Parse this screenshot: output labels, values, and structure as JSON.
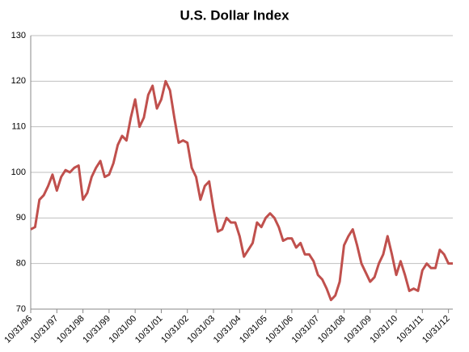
{
  "chart_data": {
    "type": "line",
    "title": "U.S. Dollar Index",
    "categories": [
      "10/31/96",
      null,
      null,
      null,
      null,
      null,
      "10/31/97",
      null,
      null,
      null,
      null,
      null,
      "10/31/98",
      null,
      null,
      null,
      null,
      null,
      "10/31/99",
      null,
      null,
      null,
      null,
      null,
      "10/31/00",
      null,
      null,
      null,
      null,
      null,
      "10/31/01",
      null,
      null,
      null,
      null,
      null,
      "10/31/02",
      null,
      null,
      null,
      null,
      null,
      "10/31/03",
      null,
      null,
      null,
      null,
      null,
      "10/31/04",
      null,
      null,
      null,
      null,
      null,
      "10/31/05",
      null,
      null,
      null,
      null,
      null,
      "10/31/06",
      null,
      null,
      null,
      null,
      null,
      "10/31/07",
      null,
      null,
      null,
      null,
      null,
      "10/31/08",
      null,
      null,
      null,
      null,
      null,
      "10/31/09",
      null,
      null,
      null,
      null,
      null,
      "10/31/10",
      null,
      null,
      null,
      null,
      null,
      "10/31/11",
      null,
      null,
      null,
      null,
      null,
      "10/31/12",
      null
    ],
    "series": [
      {
        "name": "U.S. Dollar Index",
        "color": "#c0504d",
        "values": [
          87.5,
          88,
          94,
          95,
          97,
          99.5,
          96,
          99,
          100.5,
          100,
          101,
          101.5,
          94,
          95.5,
          99,
          101,
          102.5,
          99,
          99.5,
          102,
          106,
          108,
          107,
          112,
          116,
          110,
          112,
          117,
          119,
          114,
          116,
          120,
          118,
          112,
          106.5,
          107,
          106.5,
          101,
          99,
          94,
          97,
          98,
          92,
          87,
          87.5,
          90,
          89,
          89,
          86,
          81.5,
          83,
          84.5,
          89,
          88,
          90,
          91,
          90,
          88,
          85,
          85.5,
          85.5,
          83.5,
          84.5,
          82,
          82,
          80.5,
          77.5,
          76.5,
          74.5,
          72,
          73,
          76,
          84,
          86,
          87.5,
          84,
          80,
          78,
          76,
          77,
          80,
          82,
          86,
          82,
          77.5,
          80.5,
          77.5,
          74,
          74.5,
          74,
          78.5,
          80,
          79,
          79,
          83,
          82,
          80,
          80
        ]
      }
    ],
    "ylim": [
      70,
      130
    ],
    "yticks": [
      70,
      80,
      90,
      100,
      110,
      120,
      130
    ],
    "grid": true
  }
}
